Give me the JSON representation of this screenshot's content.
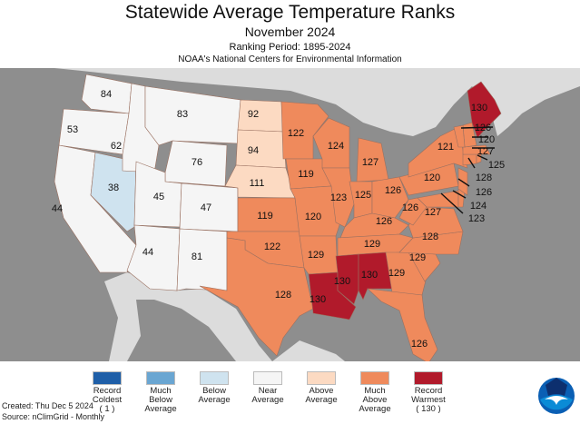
{
  "header": {
    "title": "Statewide Average Temperature Ranks",
    "subtitle": "November 2024",
    "period": "Ranking Period: 1895-2024",
    "organization": "NOAA's National Centers for Environmental Information"
  },
  "colors": {
    "ocean": "#8e8e8e",
    "land": "#dcdcdc",
    "record_coldest": "#1f5fa8",
    "much_below": "#6aa6d2",
    "below": "#cfe3ef",
    "near": "#f5f5f5",
    "above": "#fcdac2",
    "much_above": "#ef8a5c",
    "record_warmest": "#b11a2b"
  },
  "legend": [
    {
      "key": "record_coldest",
      "lines": [
        "Record",
        "Coldest",
        "( 1 )"
      ]
    },
    {
      "key": "much_below",
      "lines": [
        "Much",
        "Below",
        "Average"
      ]
    },
    {
      "key": "below",
      "lines": [
        "Below",
        "Average",
        ""
      ]
    },
    {
      "key": "near",
      "lines": [
        "Near",
        "Average",
        ""
      ]
    },
    {
      "key": "above",
      "lines": [
        "Above",
        "Average",
        ""
      ]
    },
    {
      "key": "much_above",
      "lines": [
        "Much",
        "Above",
        "Average"
      ]
    },
    {
      "key": "record_warmest",
      "lines": [
        "Record",
        "Warmest",
        "( 130 )"
      ]
    }
  ],
  "footer": {
    "created": "Created: Thu Dec  5 2024",
    "source": "Source: nClimGrid - Monthly"
  },
  "logo_text": "NOAA",
  "states": [
    {
      "rank": "84",
      "cat": "near"
    },
    {
      "rank": "53",
      "cat": "near"
    },
    {
      "rank": "44",
      "cat": "near"
    },
    {
      "rank": "38",
      "cat": "below"
    },
    {
      "rank": "62",
      "cat": "near"
    },
    {
      "rank": "83",
      "cat": "near"
    },
    {
      "rank": "76",
      "cat": "near"
    },
    {
      "rank": "45",
      "cat": "near"
    },
    {
      "rank": "47",
      "cat": "near"
    },
    {
      "rank": "44",
      "cat": "near"
    },
    {
      "rank": "81",
      "cat": "near"
    },
    {
      "rank": "92",
      "cat": "above"
    },
    {
      "rank": "94",
      "cat": "above"
    },
    {
      "rank": "111",
      "cat": "above"
    },
    {
      "rank": "119",
      "cat": "much_above"
    },
    {
      "rank": "122",
      "cat": "much_above"
    },
    {
      "rank": "128",
      "cat": "much_above"
    },
    {
      "rank": "122",
      "cat": "much_above"
    },
    {
      "rank": "119",
      "cat": "much_above"
    },
    {
      "rank": "120",
      "cat": "much_above"
    },
    {
      "rank": "129",
      "cat": "much_above"
    },
    {
      "rank": "130",
      "cat": "record_warmest"
    },
    {
      "rank": "124",
      "cat": "much_above"
    },
    {
      "rank": "123",
      "cat": "much_above"
    },
    {
      "rank": "127",
      "cat": "much_above"
    },
    {
      "rank": "125",
      "cat": "much_above"
    },
    {
      "rank": "126",
      "cat": "much_above"
    },
    {
      "rank": "126",
      "cat": "much_above"
    },
    {
      "rank": "129",
      "cat": "much_above"
    },
    {
      "rank": "130",
      "cat": "record_warmest"
    },
    {
      "rank": "130",
      "cat": "record_warmest"
    },
    {
      "rank": "129",
      "cat": "much_above"
    },
    {
      "rank": "126",
      "cat": "much_above"
    },
    {
      "rank": "129",
      "cat": "much_above"
    },
    {
      "rank": "128",
      "cat": "much_above"
    },
    {
      "rank": "127",
      "cat": "much_above"
    },
    {
      "rank": "126",
      "cat": "much_above"
    },
    {
      "rank": "120",
      "cat": "much_above"
    },
    {
      "rank": "121",
      "cat": "much_above"
    },
    {
      "rank": "123",
      "cat": "much_above"
    },
    {
      "rank": "124",
      "cat": "much_above"
    },
    {
      "rank": "126",
      "cat": "much_above"
    },
    {
      "rank": "128",
      "cat": "much_above"
    },
    {
      "rank": "125",
      "cat": "much_above"
    },
    {
      "rank": "127",
      "cat": "much_above"
    },
    {
      "rank": "120",
      "cat": "much_above"
    },
    {
      "rank": "126",
      "cat": "much_above"
    },
    {
      "rank": "130",
      "cat": "record_warmest"
    }
  ]
}
